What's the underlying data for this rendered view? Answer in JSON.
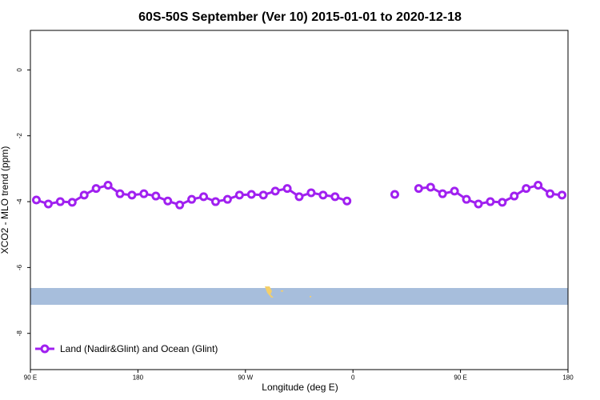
{
  "chart_data": {
    "type": "line",
    "title": "60S-50S September (Ver 10)   2015-01-01 to 2020-12-18",
    "x_label": "Longitude (deg E)",
    "y_label": "XCO2 - MLO trend (ppm)",
    "x": [
      95,
      105,
      115,
      125,
      135,
      145,
      155,
      165,
      175,
      185,
      195,
      205,
      215,
      225,
      235,
      245,
      255,
      265,
      275,
      285,
      295,
      305,
      315,
      325,
      335,
      345,
      355,
      365,
      375,
      385,
      395,
      405,
      415,
      425,
      435,
      445,
      455,
      465,
      475,
      485,
      495,
      505,
      515,
      525,
      535
    ],
    "series": [
      {
        "name": "Land (Nadir&Glint) and Ocean (Glint)",
        "color": "#a020f0",
        "values": [
          -3.95,
          -4.07,
          -4.0,
          -4.02,
          -3.8,
          -3.6,
          -3.5,
          -3.76,
          -3.8,
          -3.76,
          -3.83,
          -3.98,
          -4.1,
          -3.93,
          -3.85,
          -4.0,
          -3.93,
          -3.8,
          -3.78,
          -3.8,
          -3.68,
          -3.6,
          -3.85,
          -3.73,
          -3.8,
          -3.85,
          -3.98,
          null,
          null,
          null,
          -3.78,
          null,
          -3.6,
          -3.56,
          -3.76,
          -3.68,
          -3.93,
          -4.07,
          -4.0,
          -4.02,
          -3.83,
          -3.6,
          -3.5,
          -3.76,
          -3.8
        ]
      }
    ],
    "xlim": [
      90,
      540
    ],
    "ylim": [
      -9.1,
      1.2
    ],
    "xticks": [
      {
        "value": 90,
        "label": "90 E"
      },
      180,
      {
        "value": 270,
        "label": "90 W"
      },
      {
        "value": 360,
        "label": "0"
      },
      {
        "value": 450,
        "label": "90 E"
      },
      {
        "value": 540,
        "label": "180"
      }
    ],
    "yticks": [
      0,
      -2,
      -4,
      -6,
      -8
    ],
    "legend": "bottom-left"
  }
}
